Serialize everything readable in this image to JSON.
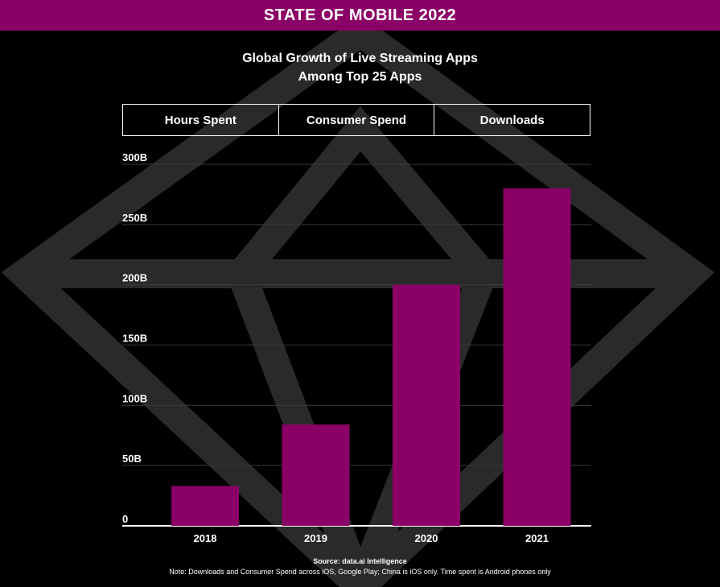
{
  "banner": {
    "title": "STATE OF MOBILE 2022",
    "color": "#8b0066"
  },
  "tabs": [
    {
      "label": "Hours Spent"
    },
    {
      "label": "Consumer Spend"
    },
    {
      "label": "Downloads"
    }
  ],
  "footer": {
    "source": "Source: data.ai Intelligence",
    "note": "Note: Downloads and Consumer Spend across iOS, Google Play; China is iOS only. Time spent is Android phones only"
  },
  "chart_data": {
    "type": "bar",
    "title": "Global Growth of Live Streaming Apps",
    "subtitle": "Among Top 25 Apps",
    "categories": [
      "2018",
      "2019",
      "2020",
      "2021"
    ],
    "values": [
      33,
      84,
      200,
      280
    ],
    "value_unit": "B",
    "yticks": [
      {
        "value": 0,
        "label": "0"
      },
      {
        "value": 50,
        "label": "50B"
      },
      {
        "value": 100,
        "label": "100B"
      },
      {
        "value": 150,
        "label": "150B"
      },
      {
        "value": 200,
        "label": "200B"
      },
      {
        "value": 250,
        "label": "250B"
      },
      {
        "value": 300,
        "label": "300B"
      }
    ],
    "ylim": [
      0,
      300
    ],
    "xlabel": "",
    "ylabel": "",
    "grid": true,
    "bar_color": "#8b0066",
    "grid_color": "#3a3a3a"
  }
}
